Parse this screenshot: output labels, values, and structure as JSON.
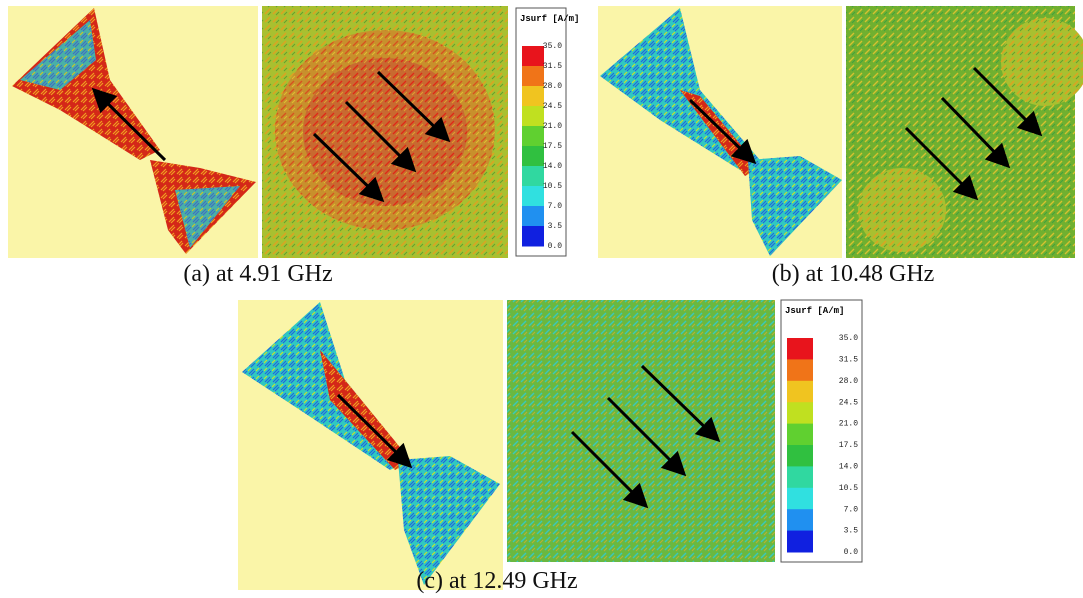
{
  "panels": [
    {
      "caption": "(a) at 4.91 GHz"
    },
    {
      "caption": "(b) at 10.48 GHz"
    },
    {
      "caption": "(c) at 12.49 GHz"
    }
  ],
  "legends": [
    {
      "title": "Jsurf [A/m]",
      "labels": [
        "35.0",
        "31.5",
        "28.0",
        "24.5",
        "21.0",
        "17.5",
        "14.0",
        "10.5",
        "7.0",
        "3.5",
        "0.0"
      ]
    },
    {
      "title": "Jsurf [A/m]",
      "labels": [
        "35.0",
        "31.5",
        "28.0",
        "24.5",
        "21.0",
        "17.5",
        "14.0",
        "10.5",
        "7.0",
        "3.5",
        "0.0"
      ]
    }
  ]
}
